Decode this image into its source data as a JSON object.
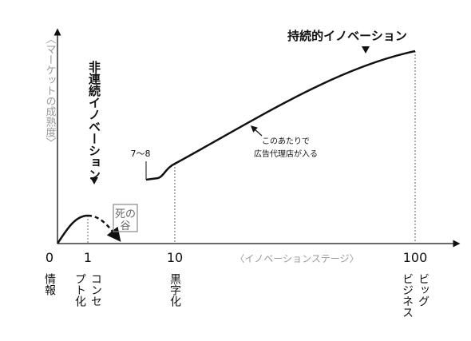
{
  "axes": {
    "y_label": "〈マーケットの成熟度〉",
    "x_label": "〈イノベーションステージ〉"
  },
  "ticks": [
    {
      "number": "0",
      "label": [
        "情報"
      ]
    },
    {
      "number": "1",
      "label": [
        "コンセ",
        "プト化"
      ]
    },
    {
      "number": "10",
      "label": [
        "黒字化"
      ]
    },
    {
      "number": "100",
      "label": [
        "ビッグ",
        "ビジネス"
      ]
    }
  ],
  "annotations": {
    "disruptive": "非連続イノベーション",
    "sustaining": "持続的イノベーション",
    "valley": [
      "死の",
      "谷"
    ],
    "range": "7〜8",
    "agency": [
      "このあたりで",
      "広告代理店が入る"
    ]
  }
}
